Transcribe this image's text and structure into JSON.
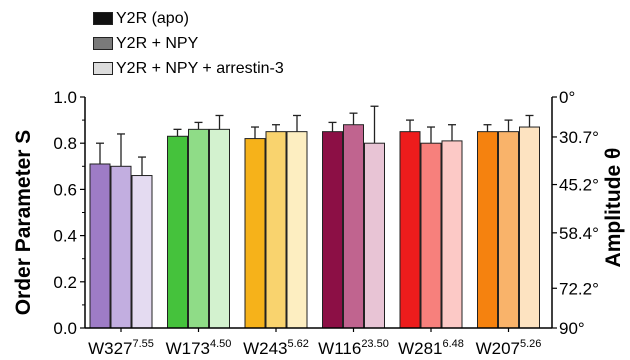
{
  "chart_data": {
    "type": "bar",
    "legend": [
      {
        "label": "Y2R (apo)",
        "swatch": "#111111"
      },
      {
        "label": "Y2R + NPY",
        "swatch": "#7a7a7a"
      },
      {
        "label": "Y2R + NPY + arrestin-3",
        "swatch": "#dcdcdc"
      }
    ],
    "series_names": [
      "Y2R (apo)",
      "Y2R + NPY",
      "Y2R + NPY + arrestin-3"
    ],
    "groups": [
      {
        "label": "W327",
        "sup": "7.55",
        "values": [
          0.71,
          0.7,
          0.66
        ],
        "errors": [
          0.09,
          0.14,
          0.08
        ],
        "colors": [
          "#9e7cc6",
          "#c2aee0",
          "#e4dbf1"
        ]
      },
      {
        "label": "W173",
        "sup": "4.50",
        "values": [
          0.83,
          0.86,
          0.86
        ],
        "errors": [
          0.03,
          0.03,
          0.06
        ],
        "colors": [
          "#45c23c",
          "#8fdc87",
          "#d3f2cf"
        ]
      },
      {
        "label": "W243",
        "sup": "5.62",
        "values": [
          0.82,
          0.85,
          0.85
        ],
        "errors": [
          0.05,
          0.03,
          0.07
        ],
        "colors": [
          "#f6b21a",
          "#f9d36e",
          "#fdeec1"
        ]
      },
      {
        "label": "W116",
        "sup": "23.50",
        "values": [
          0.85,
          0.88,
          0.8
        ],
        "errors": [
          0.04,
          0.05,
          0.16
        ],
        "colors": [
          "#8c0f45",
          "#c0648f",
          "#e8c4d5"
        ]
      },
      {
        "label": "W281",
        "sup": "6.48",
        "values": [
          0.85,
          0.8,
          0.81
        ],
        "errors": [
          0.05,
          0.07,
          0.07
        ],
        "colors": [
          "#ee1c1c",
          "#f7807c",
          "#fcc9c6"
        ]
      },
      {
        "label": "W207",
        "sup": "5.26",
        "values": [
          0.85,
          0.85,
          0.87
        ],
        "errors": [
          0.03,
          0.05,
          0.05
        ],
        "colors": [
          "#f5820f",
          "#f9b36a",
          "#fde3c1"
        ]
      }
    ],
    "ylabel": "Order Parameter S",
    "ylim": [
      0.0,
      1.0
    ],
    "yticks": [
      0.0,
      0.2,
      0.4,
      0.6,
      0.8,
      1.0
    ],
    "yticklabels": [
      "0.0",
      "0.2",
      "0.4",
      "0.6",
      "0.8",
      "1.0"
    ],
    "y2label": "Amplitude θ",
    "y2ticks": [
      {
        "s": 1.0,
        "label": "0°"
      },
      {
        "s": 0.827,
        "label": "30.7°"
      },
      {
        "s": 0.621,
        "label": "45.2°"
      },
      {
        "s": 0.412,
        "label": "58.4°"
      },
      {
        "s": 0.172,
        "label": "72.2°"
      },
      {
        "s": 0.0,
        "label": "90°"
      }
    ]
  }
}
